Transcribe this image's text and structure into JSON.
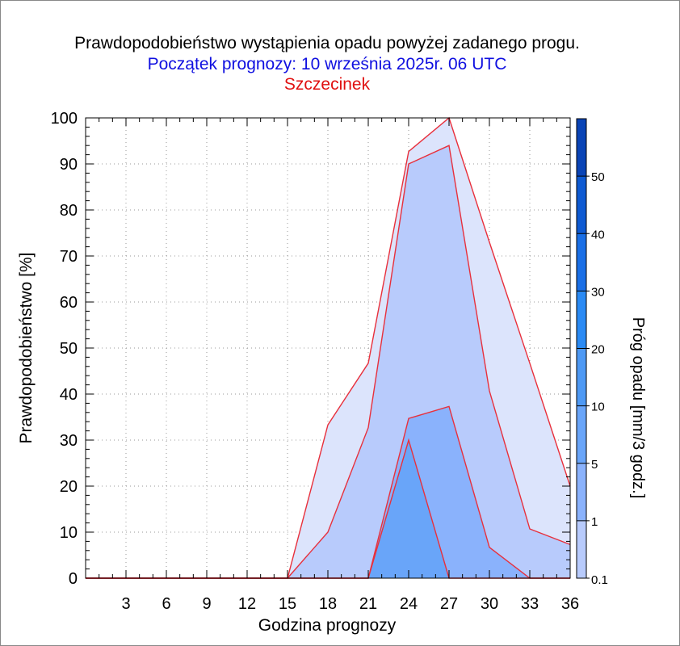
{
  "chart_data": {
    "type": "area",
    "title": "Prawdopodobieństwo wystąpienia opadu powyżej zadanego progu.",
    "subtitle": "Początek prognozy: 10 września 2025r. 06 UTC",
    "station": "Szczecinek",
    "xlabel": "Godzina prognozy",
    "ylabel": "Prawdopodobieństwo [%]",
    "xlim": [
      0,
      36
    ],
    "ylim": [
      0,
      100
    ],
    "x_ticks": [
      "3",
      "6",
      "9",
      "12",
      "15",
      "18",
      "21",
      "24",
      "27",
      "30",
      "33",
      "36"
    ],
    "y_ticks": [
      "0",
      "10",
      "20",
      "30",
      "40",
      "50",
      "60",
      "70",
      "80",
      "90",
      "100"
    ],
    "x": [
      0,
      3,
      6,
      9,
      12,
      15,
      18,
      21,
      24,
      27,
      30,
      33,
      36
    ],
    "series": [
      {
        "threshold": 0.1,
        "values": [
          0,
          0,
          0,
          0,
          0,
          0,
          33.3,
          46.7,
          92.7,
          100,
          73,
          46.7,
          20
        ]
      },
      {
        "threshold": 1,
        "values": [
          0,
          0,
          0,
          0,
          0,
          0,
          10,
          32.7,
          90,
          94,
          40.7,
          10.7,
          7.3
        ]
      },
      {
        "threshold": 5,
        "values": [
          0,
          0,
          0,
          0,
          0,
          0,
          0,
          0,
          34.7,
          37.3,
          6.7,
          0,
          0
        ]
      },
      {
        "threshold": 10,
        "values": [
          0,
          0,
          0,
          0,
          0,
          0,
          0,
          0,
          30,
          0,
          0,
          0,
          0
        ]
      }
    ],
    "colorbar": {
      "label": "Próg opadu [mm/3 godz.]",
      "tick_labels": [
        "0.1",
        "1",
        "5",
        "10",
        "20",
        "30",
        "40",
        "50"
      ],
      "colors": [
        "#dce4fc",
        "#b8cbfc",
        "#8ab2fc",
        "#69a5f9",
        "#4e99f4",
        "#2a8af4",
        "#1a6fe6",
        "#0e5ad2",
        "#0a44b6"
      ]
    },
    "outline_color": "#e8303c",
    "grid": true
  }
}
